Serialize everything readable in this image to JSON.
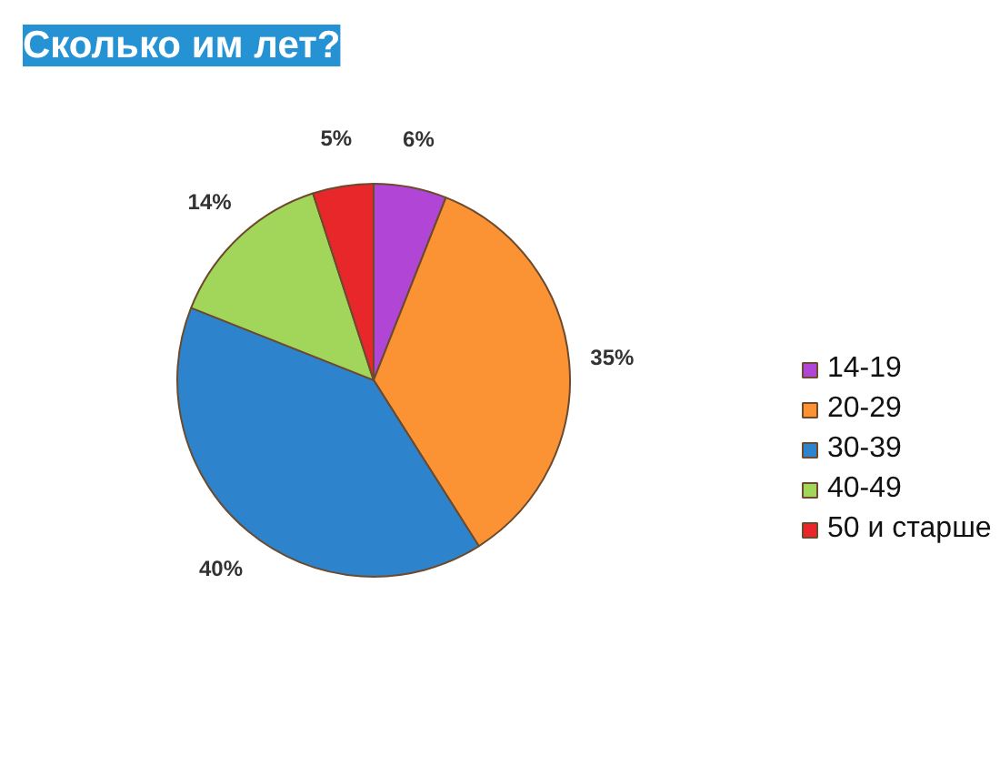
{
  "chart_data": {
    "type": "pie",
    "title": "Сколько им лет?",
    "categories": [
      "14-19",
      "20-29",
      "30-39",
      "40-49",
      "50 и старше"
    ],
    "values": [
      6,
      35,
      40,
      14,
      5
    ],
    "colors": [
      "#b146d6",
      "#fb9233",
      "#2d84cc",
      "#a2d65a",
      "#e8272b"
    ],
    "value_labels": [
      "6%",
      "35%",
      "40%",
      "14%",
      "5%"
    ],
    "legend": "right"
  }
}
